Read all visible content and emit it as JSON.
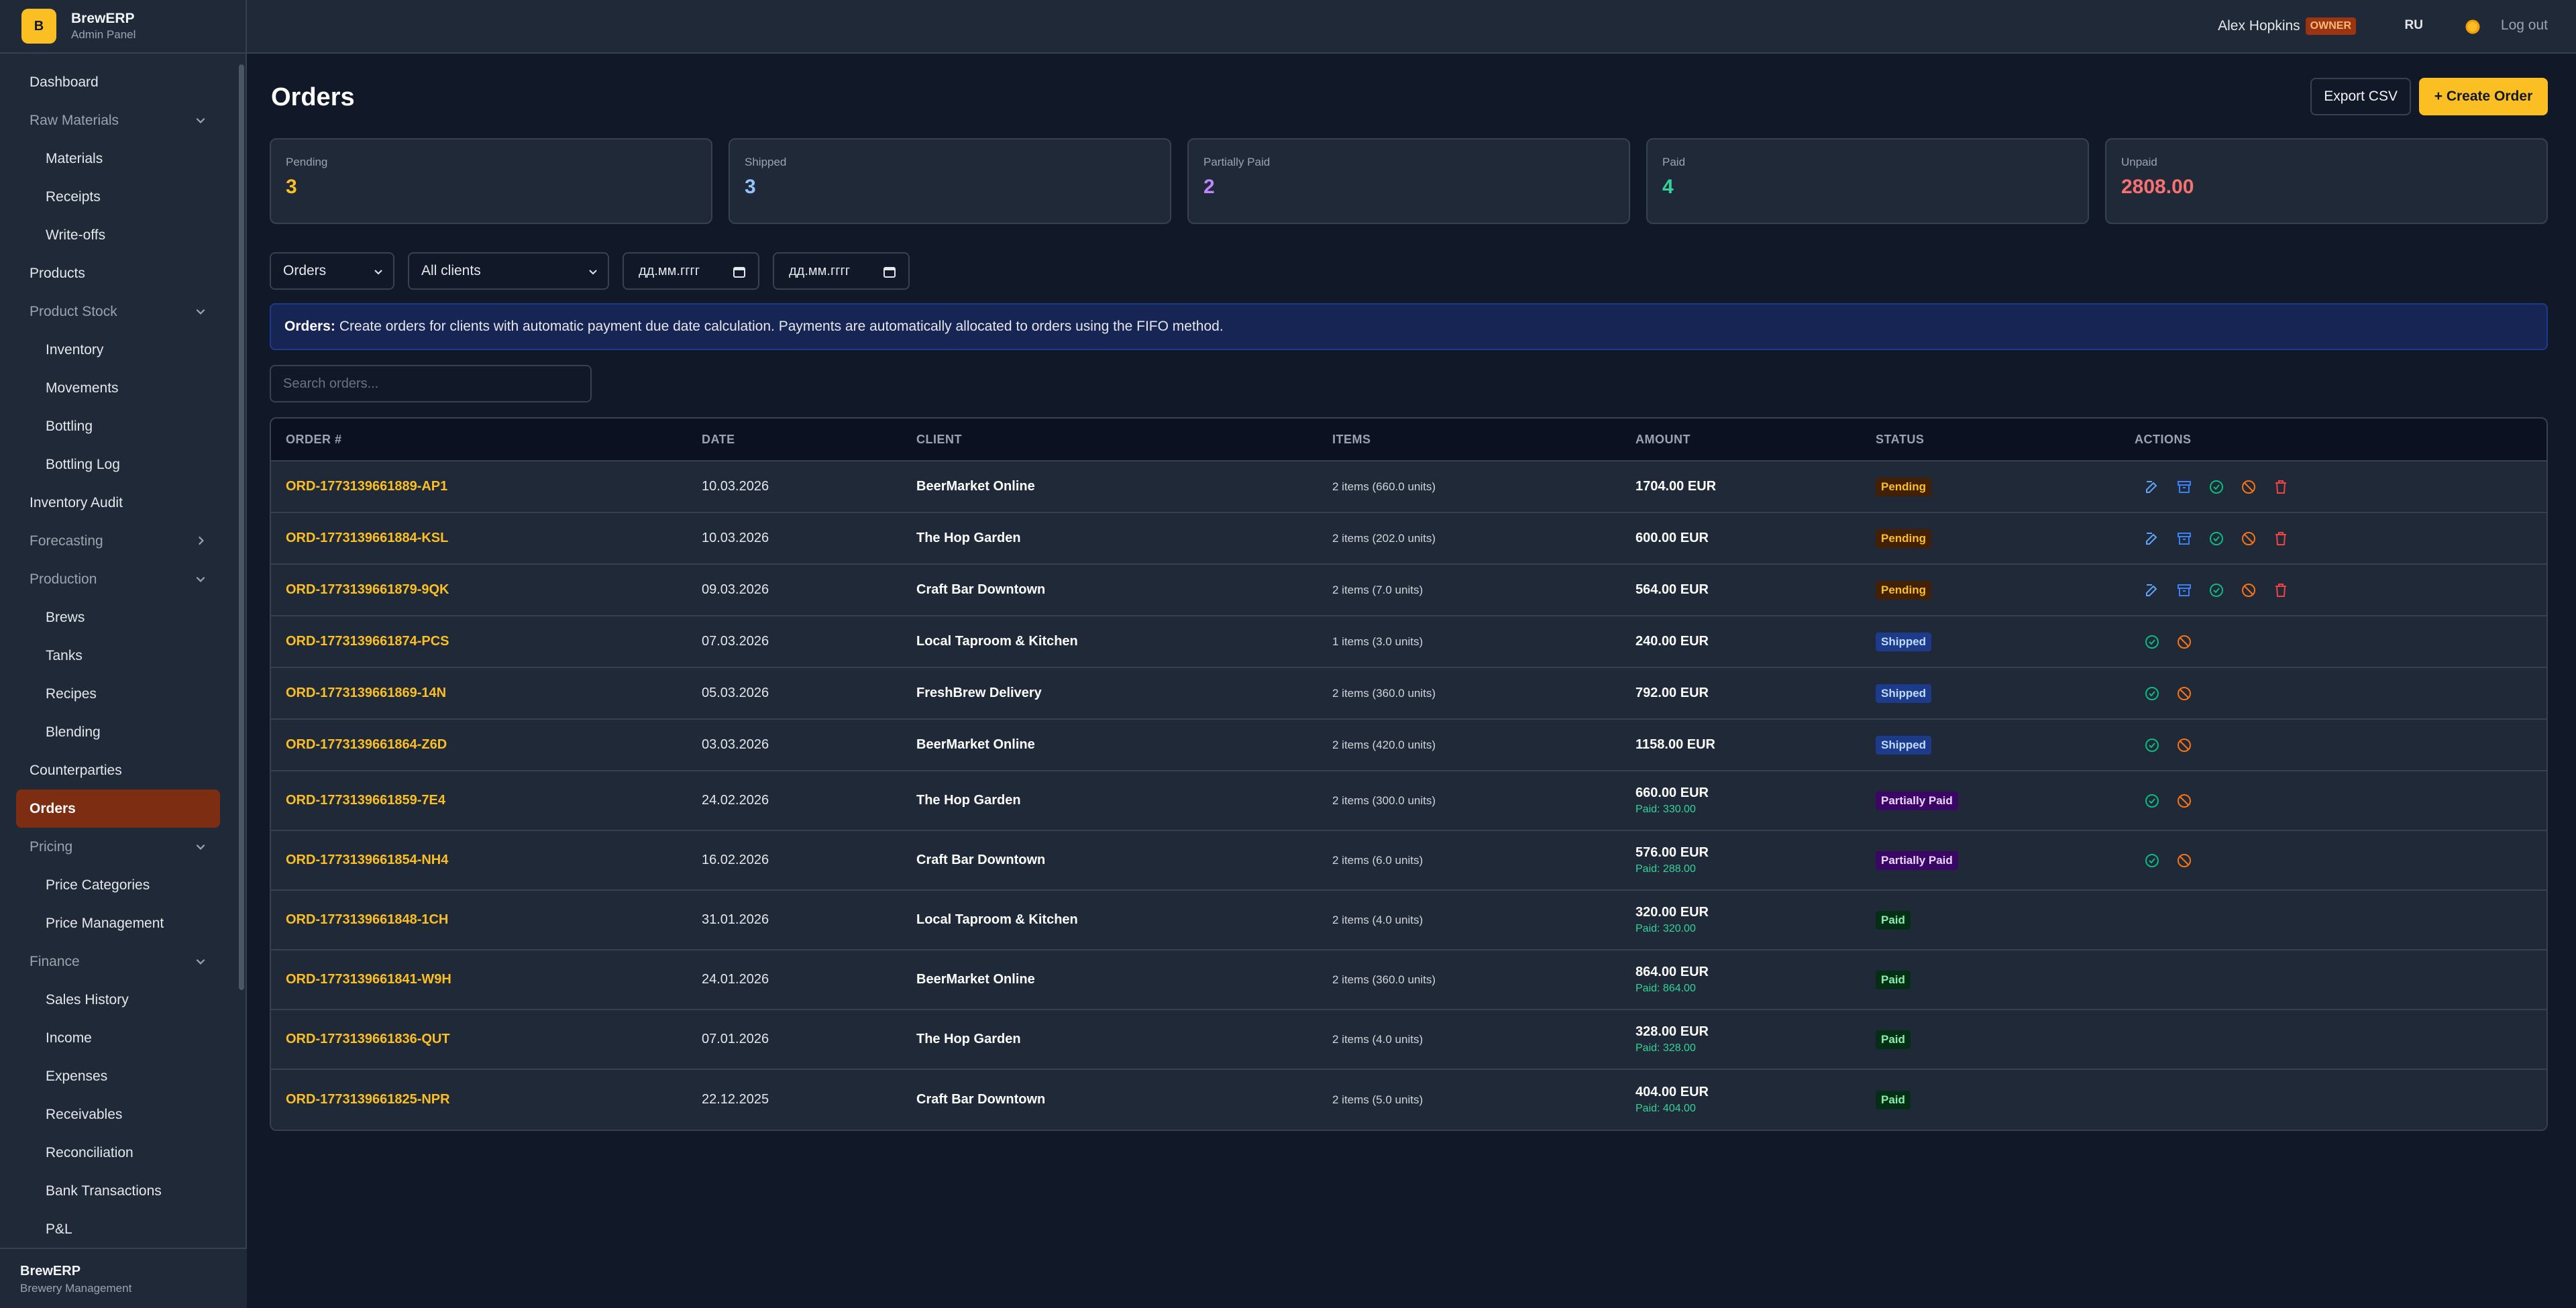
{
  "app": {
    "name": "BrewERP",
    "subtitle": "Admin Panel",
    "logo_letter": "B"
  },
  "sidebar": {
    "items": [
      {
        "label": "Dashboard",
        "kind": "top"
      },
      {
        "label": "Raw Materials",
        "kind": "group",
        "chevron": "chevron-down-icon"
      },
      {
        "label": "Materials",
        "kind": "sub"
      },
      {
        "label": "Receipts",
        "kind": "sub"
      },
      {
        "label": "Write-offs",
        "kind": "sub"
      },
      {
        "label": "Products",
        "kind": "top"
      },
      {
        "label": "Product Stock",
        "kind": "group",
        "chevron": "chevron-down-icon"
      },
      {
        "label": "Inventory",
        "kind": "sub"
      },
      {
        "label": "Movements",
        "kind": "sub"
      },
      {
        "label": "Bottling",
        "kind": "sub"
      },
      {
        "label": "Bottling Log",
        "kind": "sub"
      },
      {
        "label": "Inventory Audit",
        "kind": "top"
      },
      {
        "label": "Forecasting",
        "kind": "group",
        "chevron": "chevron-right-icon"
      },
      {
        "label": "Production",
        "kind": "group",
        "chevron": "chevron-down-icon"
      },
      {
        "label": "Brews",
        "kind": "sub"
      },
      {
        "label": "Tanks",
        "kind": "sub"
      },
      {
        "label": "Recipes",
        "kind": "sub"
      },
      {
        "label": "Blending",
        "kind": "sub"
      },
      {
        "label": "Counterparties",
        "kind": "top"
      },
      {
        "label": "Orders",
        "kind": "top",
        "active": true
      },
      {
        "label": "Pricing",
        "kind": "group",
        "chevron": "chevron-down-icon"
      },
      {
        "label": "Price Categories",
        "kind": "sub"
      },
      {
        "label": "Price Management",
        "kind": "sub"
      },
      {
        "label": "Finance",
        "kind": "group",
        "chevron": "chevron-down-icon"
      },
      {
        "label": "Sales History",
        "kind": "sub"
      },
      {
        "label": "Income",
        "kind": "sub"
      },
      {
        "label": "Expenses",
        "kind": "sub"
      },
      {
        "label": "Receivables",
        "kind": "sub"
      },
      {
        "label": "Reconciliation",
        "kind": "sub"
      },
      {
        "label": "Bank Transactions",
        "kind": "sub"
      },
      {
        "label": "P&L",
        "kind": "sub"
      }
    ],
    "footer": {
      "name": "BrewERP",
      "sub": "Brewery Management"
    }
  },
  "topbar": {
    "user": "Alex Hopkins",
    "role": "OWNER",
    "lang": "RU",
    "theme_icon": "sun-icon",
    "logout": "Log out"
  },
  "page": {
    "title": "Orders",
    "export_label": "Export CSV",
    "create_label": "+ Create Order"
  },
  "stats": [
    {
      "label": "Pending",
      "value": "3",
      "color": "#fbbf24"
    },
    {
      "label": "Shipped",
      "value": "3",
      "color": "#93c5fd"
    },
    {
      "label": "Partially Paid",
      "value": "2",
      "color": "#c084fc"
    },
    {
      "label": "Paid",
      "value": "4",
      "color": "#34d399"
    },
    {
      "label": "Unpaid",
      "value": "2808.00",
      "color": "#f87171"
    }
  ],
  "filters": {
    "type": "Orders",
    "client": "All clients",
    "date_from": "дд.мм.гггг",
    "date_to": "дд.мм.гггг"
  },
  "info": {
    "bold": "Orders:",
    "text": "Create orders for clients with automatic payment due date calculation. Payments are automatically allocated to orders using the FIFO method."
  },
  "search": {
    "placeholder": "Search orders..."
  },
  "table": {
    "headers": [
      "ORDER #",
      "DATE",
      "CLIENT",
      "ITEMS",
      "AMOUNT",
      "STATUS",
      "ACTIONS"
    ],
    "rows": [
      {
        "order": "ORD-1773139661889-AP1",
        "date": "10.03.2026",
        "client": "BeerMarket Online",
        "items": "2 items (660.0 units)",
        "amount": "1704.00 EUR",
        "paid": "",
        "status": "Pending",
        "actions": [
          "edit-icon",
          "archive-icon",
          "check-circle-icon",
          "ban-icon",
          "trash-icon"
        ]
      },
      {
        "order": "ORD-1773139661884-KSL",
        "date": "10.03.2026",
        "client": "The Hop Garden",
        "items": "2 items (202.0 units)",
        "amount": "600.00 EUR",
        "paid": "",
        "status": "Pending",
        "actions": [
          "edit-icon",
          "archive-icon",
          "check-circle-icon",
          "ban-icon",
          "trash-icon"
        ]
      },
      {
        "order": "ORD-1773139661879-9QK",
        "date": "09.03.2026",
        "client": "Craft Bar Downtown",
        "items": "2 items (7.0 units)",
        "amount": "564.00 EUR",
        "paid": "",
        "status": "Pending",
        "actions": [
          "edit-icon",
          "archive-icon",
          "check-circle-icon",
          "ban-icon",
          "trash-icon"
        ]
      },
      {
        "order": "ORD-1773139661874-PCS",
        "date": "07.03.2026",
        "client": "Local Taproom & Kitchen",
        "items": "1 items (3.0 units)",
        "amount": "240.00 EUR",
        "paid": "",
        "status": "Shipped",
        "actions": [
          "check-circle-icon",
          "ban-icon"
        ]
      },
      {
        "order": "ORD-1773139661869-14N",
        "date": "05.03.2026",
        "client": "FreshBrew Delivery",
        "items": "2 items (360.0 units)",
        "amount": "792.00 EUR",
        "paid": "",
        "status": "Shipped",
        "actions": [
          "check-circle-icon",
          "ban-icon"
        ]
      },
      {
        "order": "ORD-1773139661864-Z6D",
        "date": "03.03.2026",
        "client": "BeerMarket Online",
        "items": "2 items (420.0 units)",
        "amount": "1158.00 EUR",
        "paid": "",
        "status": "Shipped",
        "actions": [
          "check-circle-icon",
          "ban-icon"
        ]
      },
      {
        "order": "ORD-1773139661859-7E4",
        "date": "24.02.2026",
        "client": "The Hop Garden",
        "items": "2 items (300.0 units)",
        "amount": "660.00 EUR",
        "paid": "Paid: 330.00",
        "status": "Partially Paid",
        "actions": [
          "check-circle-icon",
          "ban-icon"
        ]
      },
      {
        "order": "ORD-1773139661854-NH4",
        "date": "16.02.2026",
        "client": "Craft Bar Downtown",
        "items": "2 items (6.0 units)",
        "amount": "576.00 EUR",
        "paid": "Paid: 288.00",
        "status": "Partially Paid",
        "actions": [
          "check-circle-icon",
          "ban-icon"
        ]
      },
      {
        "order": "ORD-1773139661848-1CH",
        "date": "31.01.2026",
        "client": "Local Taproom & Kitchen",
        "items": "2 items (4.0 units)",
        "amount": "320.00 EUR",
        "paid": "Paid: 320.00",
        "status": "Paid",
        "actions": []
      },
      {
        "order": "ORD-1773139661841-W9H",
        "date": "24.01.2026",
        "client": "BeerMarket Online",
        "items": "2 items (360.0 units)",
        "amount": "864.00 EUR",
        "paid": "Paid: 864.00",
        "status": "Paid",
        "actions": []
      },
      {
        "order": "ORD-1773139661836-QUT",
        "date": "07.01.2026",
        "client": "The Hop Garden",
        "items": "2 items (4.0 units)",
        "amount": "328.00 EUR",
        "paid": "Paid: 328.00",
        "status": "Paid",
        "actions": []
      },
      {
        "order": "ORD-1773139661825-NPR",
        "date": "22.12.2025",
        "client": "Craft Bar Downtown",
        "items": "2 items (5.0 units)",
        "amount": "404.00 EUR",
        "paid": "Paid: 404.00",
        "status": "Paid",
        "actions": []
      }
    ]
  },
  "colors": {
    "accent": "#fbbf24",
    "active_nav": "#7c2d12",
    "pending_bg": "#422006",
    "pending_fg": "#fbbf24",
    "shipped_bg": "#1e3a8a",
    "shipped_fg": "#bfdbfe",
    "partial_bg": "#3b0764",
    "partial_fg": "#e9d5ff",
    "paid_bg": "#052e16",
    "paid_fg": "#86efac"
  }
}
